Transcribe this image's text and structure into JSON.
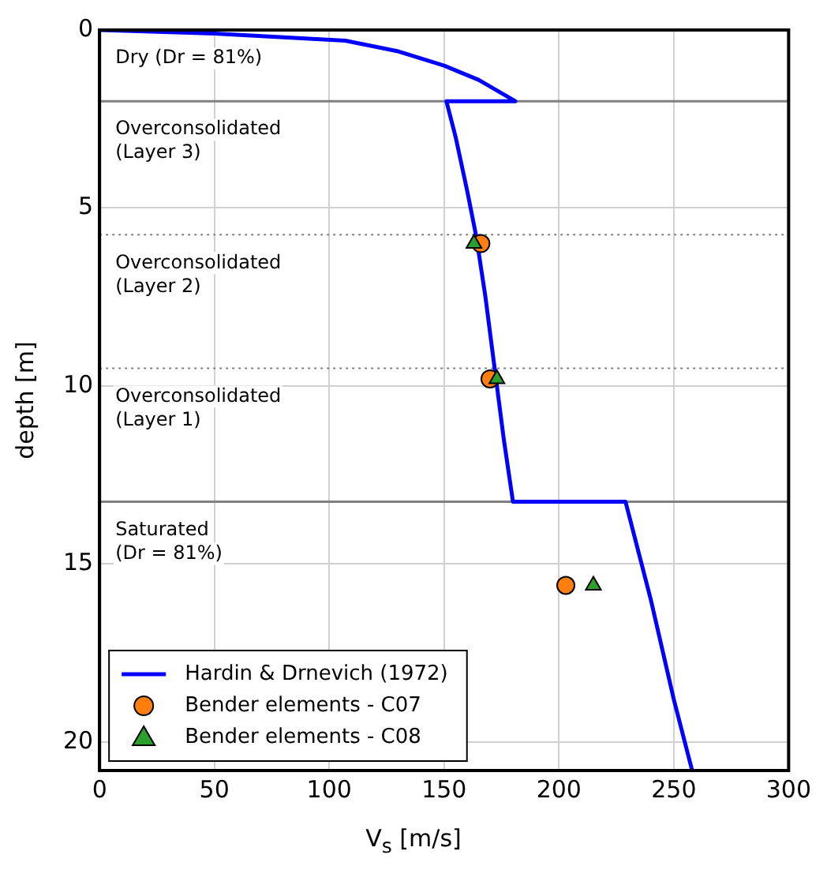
{
  "chart_data": {
    "type": "line",
    "xlabel": "V$_{s}$ [m/s]",
    "ylabel": "depth [m]",
    "xlim": [
      0,
      300
    ],
    "xticks": [
      0,
      50,
      100,
      150,
      200,
      250,
      300
    ],
    "ylim": [
      20.8,
      0
    ],
    "yticks": [
      0,
      5,
      10,
      15,
      20
    ],
    "grid": true,
    "legend": "bottom left",
    "series": [
      {
        "name": "Hardin & Drnevich (1972)",
        "color": "#0000ff",
        "marker": "none",
        "line_style": "solid",
        "x": [
          0,
          50,
          107,
          130,
          150,
          165,
          181,
          151,
          155,
          160,
          164,
          168,
          172,
          176,
          180,
          229,
          240,
          250,
          258
        ],
        "values": [
          0,
          0.1,
          0.3,
          0.6,
          1.0,
          1.4,
          2.0,
          2.0,
          3,
          4.5,
          5.8,
          7.5,
          9.5,
          11.5,
          13.25,
          13.25,
          16,
          18.8,
          20.8
        ]
      },
      {
        "name": "Bender elements - C07",
        "type": "scatter",
        "color": "#ff7f0e",
        "marker": "circle",
        "x": [
          166,
          170,
          203
        ],
        "values": [
          6.0,
          9.8,
          15.6
        ]
      },
      {
        "name": "Bender elements - C08",
        "type": "scatter",
        "color": "#2ca02c",
        "marker": "triangle",
        "x": [
          163,
          173,
          215
        ],
        "values": [
          6.0,
          9.8,
          15.6
        ]
      }
    ],
    "ref_lines": [
      {
        "axis": "y",
        "value": 2.0,
        "color": "#808080",
        "line_style": "solid"
      },
      {
        "axis": "y",
        "value": 5.75,
        "color": "#808080",
        "line_style": "dotted"
      },
      {
        "axis": "y",
        "value": 9.5,
        "color": "#808080",
        "line_style": "dotted"
      },
      {
        "axis": "y",
        "value": 13.25,
        "color": "#808080",
        "line_style": "solid"
      }
    ],
    "annotations": [
      "Dry (Dr = 81%)",
      "Overconsolidated\n(Layer 3)",
      "Overconsolidated\n(Layer 2)",
      "Overconsolidated\n(Layer 1)",
      "Saturated\n(Dr = 81%)"
    ]
  }
}
